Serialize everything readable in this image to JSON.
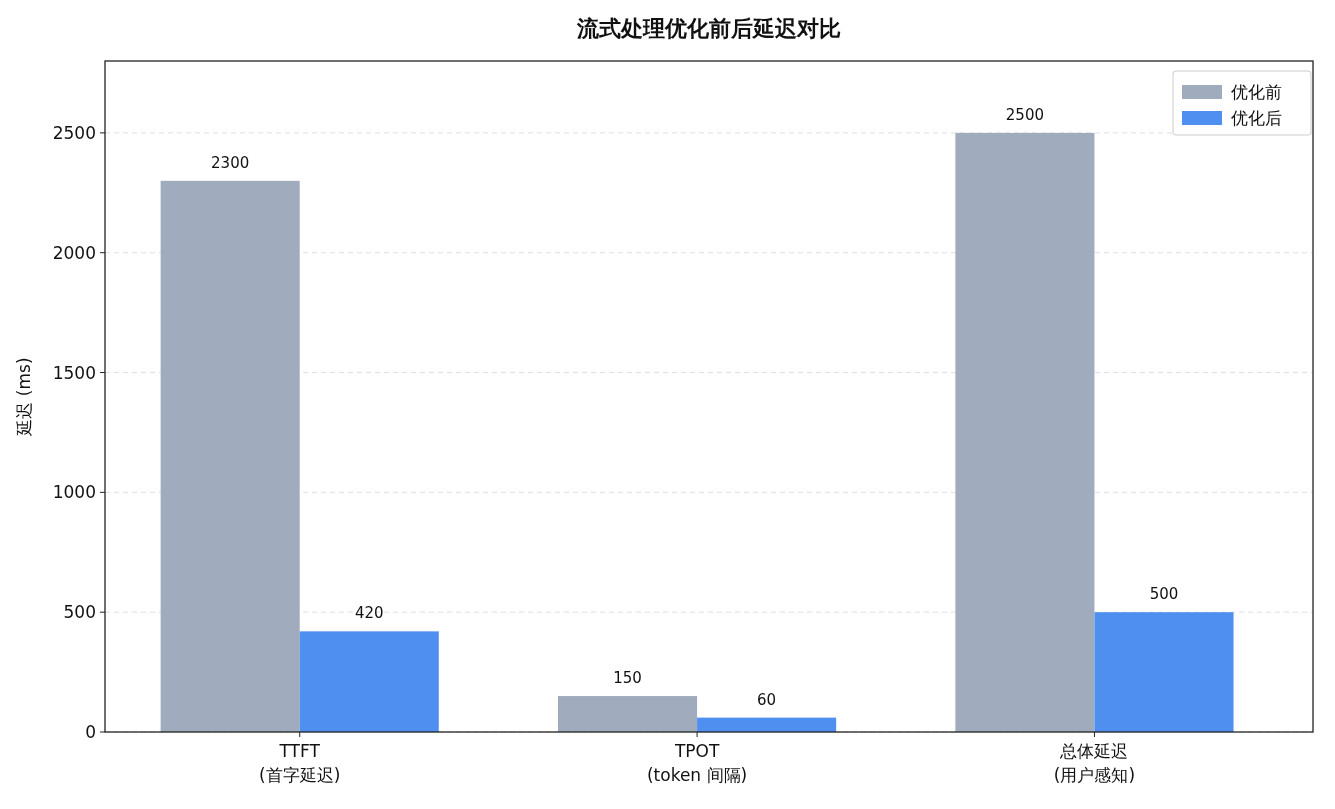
{
  "chart_data": {
    "type": "bar",
    "title": "流式处理优化前后延迟对比",
    "ylabel": "延迟 (ms)",
    "categories": [
      "TTFT\n(首字延迟)",
      "TPOT\n(token 间隔)",
      "总体延迟\n(用户感知)"
    ],
    "series": [
      {
        "name": "优化前",
        "color": "#a0acbd",
        "values": [
          2300,
          150,
          2500
        ]
      },
      {
        "name": "优化后",
        "color": "#4f8ff0",
        "values": [
          420,
          60,
          500
        ]
      }
    ],
    "ylim": [
      0,
      2800
    ],
    "yticks": [
      0,
      500,
      1000,
      1500,
      2000,
      2500
    ],
    "grid": "y",
    "legend": "top right",
    "data_labels": true
  }
}
